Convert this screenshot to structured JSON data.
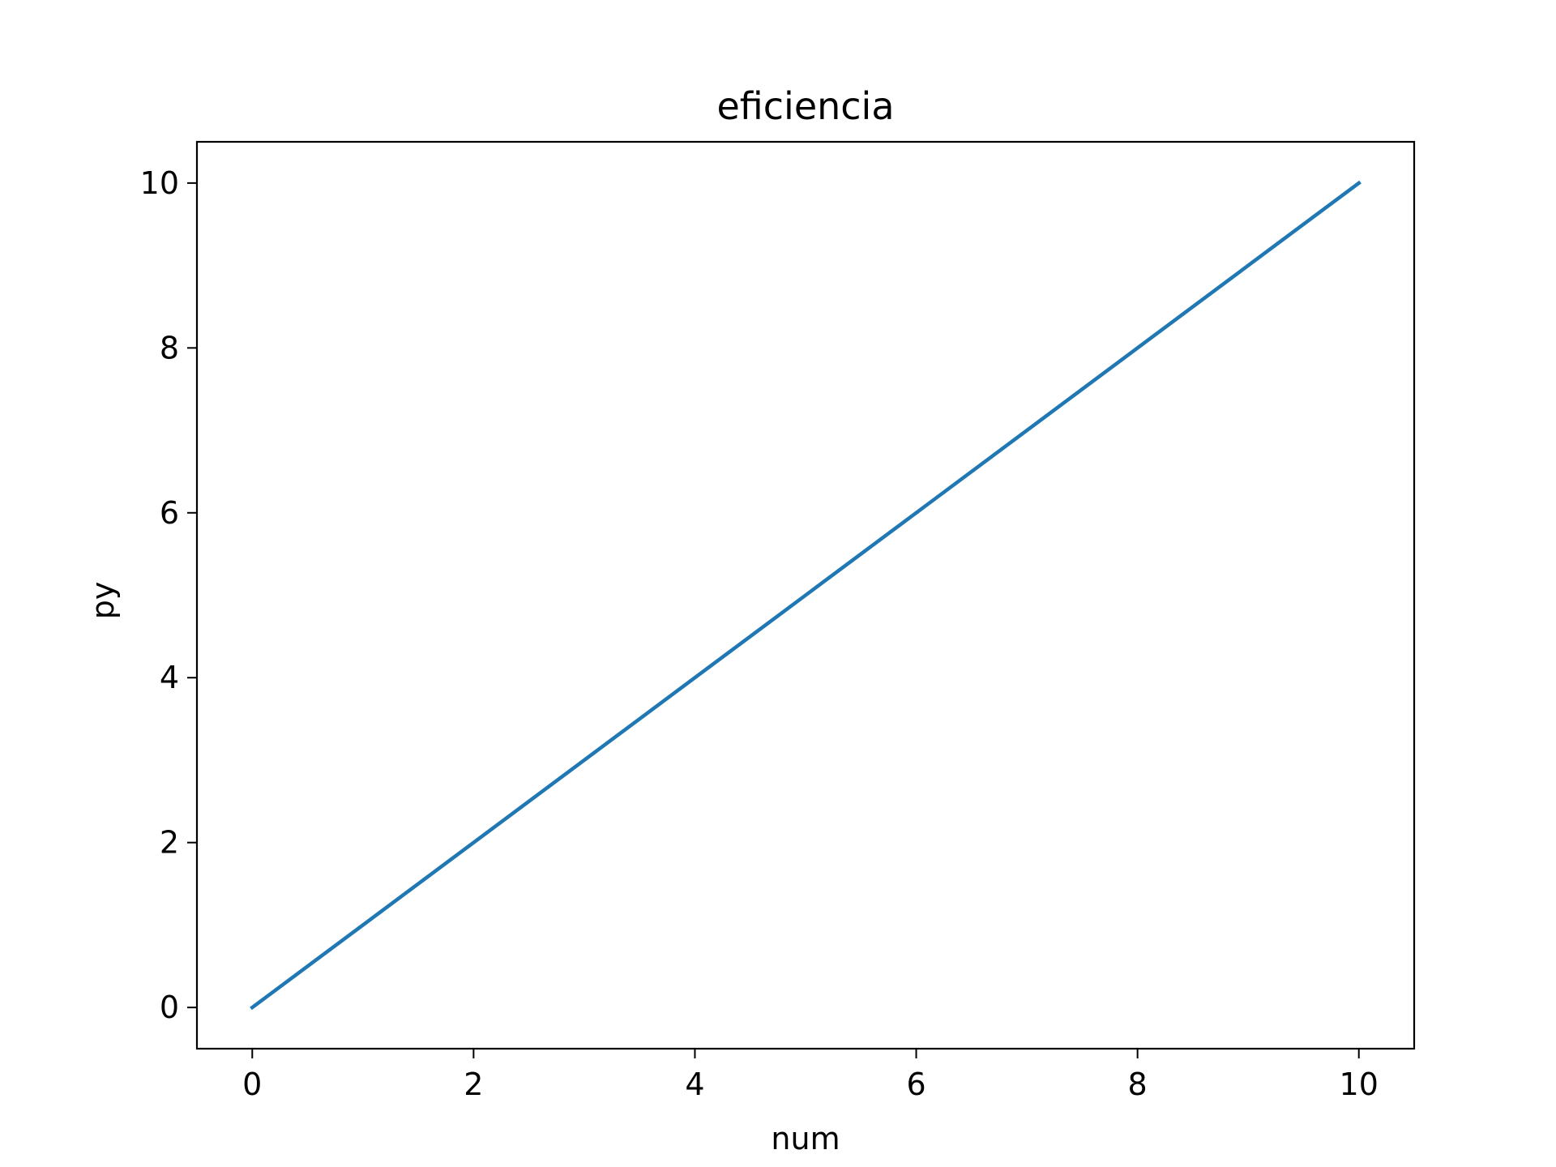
{
  "chart_data": {
    "type": "line",
    "title": "eficiencia",
    "xlabel": "num",
    "ylabel": "py",
    "xlim": [
      -0.5,
      10.5
    ],
    "ylim": [
      -0.5,
      10.5
    ],
    "x_ticks": [
      0,
      2,
      4,
      6,
      8,
      10
    ],
    "y_ticks": [
      0,
      2,
      4,
      6,
      8,
      10
    ],
    "grid": false,
    "legend": "none",
    "series": [
      {
        "x": [
          0,
          1,
          2,
          3,
          4,
          5,
          6,
          7,
          8,
          9,
          10
        ],
        "y": [
          0,
          1,
          2,
          3,
          4,
          5,
          6,
          7,
          8,
          9,
          10
        ],
        "color": "#1f77b4"
      }
    ]
  }
}
